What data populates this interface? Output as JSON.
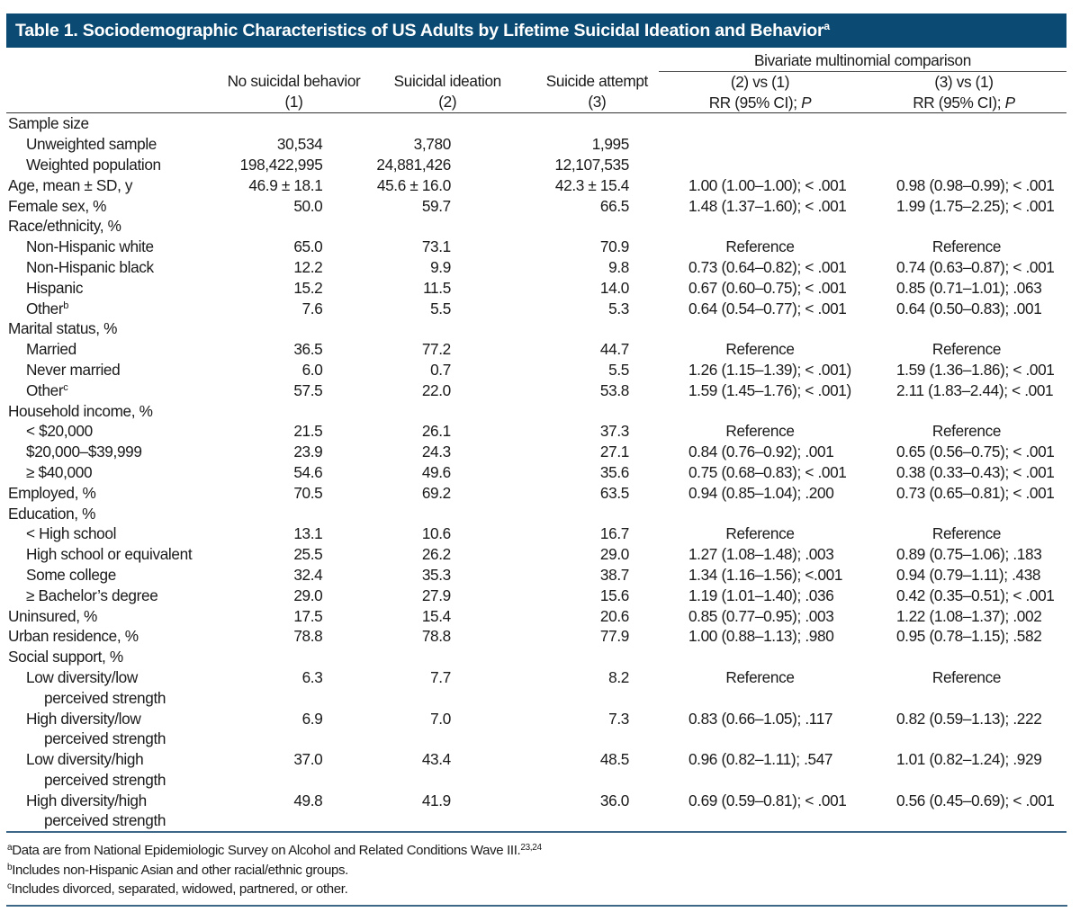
{
  "title": {
    "text": "Table 1. Sociodemographic Characteristics of US Adults by Lifetime Suicidal Ideation and Behavior",
    "footnote_marker": "a"
  },
  "colors": {
    "title_bar": "#0b4a72",
    "title_text": "#ffffff",
    "rule": "#3d6786"
  },
  "header": {
    "spanner": "Bivariate multinomial comparison",
    "columns": [
      {
        "line1": "No suicidal behavior",
        "line2": "(1)"
      },
      {
        "line1": "Suicidal ideation",
        "line2": "(2)"
      },
      {
        "line1": "Suicide attempt",
        "line2": "(3)"
      },
      {
        "line1": "(2) vs (1)",
        "line2_pre": "RR (95% CI); ",
        "line2_italic": "P"
      },
      {
        "line1": "(3) vs (1)",
        "line2_pre": "RR (95% CI); ",
        "line2_italic": "P"
      }
    ]
  },
  "rows": [
    {
      "label": "Sample size",
      "level": 0,
      "g1": "",
      "g2": "",
      "g3": "",
      "c1": "",
      "c2": ""
    },
    {
      "label": "Unweighted sample",
      "level": 1,
      "g1": "30,534",
      "g2": "3,780",
      "g3": "1,995",
      "c1": "",
      "c2": ""
    },
    {
      "label": "Weighted population",
      "level": 1,
      "g1": "198,422,995",
      "g2": "24,881,426",
      "g3": "12,107,535",
      "c1": "",
      "c2": ""
    },
    {
      "label": "Age, mean ± SD, y",
      "level": 0,
      "g1": "46.9 ± 18.1",
      "g2": "45.6 ± 16.0",
      "g3": "42.3 ± 15.4",
      "c1": "1.00 (1.00–1.00); < .001",
      "c2": "0.98 (0.98–0.99); < .001"
    },
    {
      "label": "Female sex, %",
      "level": 0,
      "g1": "50.0",
      "g2": "59.7",
      "g3": "66.5",
      "c1": "1.48 (1.37–1.60); < .001",
      "c2": "1.99 (1.75–2.25); < .001"
    },
    {
      "label": "Race/ethnicity, %",
      "level": 0,
      "g1": "",
      "g2": "",
      "g3": "",
      "c1": "",
      "c2": ""
    },
    {
      "label": "Non-Hispanic white",
      "level": 1,
      "g1": "65.0",
      "g2": "73.1",
      "g3": "70.9",
      "c1": "Reference",
      "c2": "Reference"
    },
    {
      "label": "Non-Hispanic black",
      "level": 1,
      "g1": "12.2",
      "g2": "9.9",
      "g3": "9.8",
      "c1": "0.73 (0.64–0.82); < .001",
      "c2": "0.74 (0.63–0.87); < .001"
    },
    {
      "label": "Hispanic",
      "level": 1,
      "g1": "15.2",
      "g2": "11.5",
      "g3": "14.0",
      "c1": "0.67 (0.60–0.75); < .001",
      "c2": "0.85 (0.71–1.01); .063"
    },
    {
      "label": "Other",
      "label_sup": "b",
      "level": 1,
      "g1": "7.6",
      "g2": "5.5",
      "g3": "5.3",
      "c1": "0.64 (0.54–0.77); < .001",
      "c2": "0.64 (0.50–0.83); .001"
    },
    {
      "label": "Marital status, %",
      "level": 0,
      "g1": "",
      "g2": "",
      "g3": "",
      "c1": "",
      "c2": ""
    },
    {
      "label": "Married",
      "level": 1,
      "g1": "36.5",
      "g2": "77.2",
      "g3": "44.7",
      "c1": "Reference",
      "c2": "Reference"
    },
    {
      "label": "Never married",
      "level": 1,
      "g1": "6.0",
      "g2": "0.7",
      "g3": "5.5",
      "c1": "1.26 (1.15–1.39); < .001)",
      "c2": "1.59 (1.36–1.86); < .001"
    },
    {
      "label": "Other",
      "label_sup": "c",
      "level": 1,
      "g1": "57.5",
      "g2": "22.0",
      "g3": "53.8",
      "c1": "1.59 (1.45–1.76); < .001)",
      "c2": "2.11 (1.83–2.44); < .001"
    },
    {
      "label": "Household income, %",
      "level": 0,
      "g1": "",
      "g2": "",
      "g3": "",
      "c1": "",
      "c2": ""
    },
    {
      "label": "< $20,000",
      "level": 1,
      "g1": "21.5",
      "g2": "26.1",
      "g3": "37.3",
      "c1": "Reference",
      "c2": "Reference"
    },
    {
      "label": "$20,000–$39,999",
      "level": 1,
      "g1": "23.9",
      "g2": "24.3",
      "g3": "27.1",
      "c1": "0.84 (0.76–0.92); .001",
      "c2": "0.65 (0.56–0.75); < .001"
    },
    {
      "label": "≥ $40,000",
      "level": 1,
      "g1": "54.6",
      "g2": "49.6",
      "g3": "35.6",
      "c1": "0.75 (0.68–0.83); < .001",
      "c2": "0.38 (0.33–0.43); < .001"
    },
    {
      "label": "Employed, %",
      "level": 0,
      "g1": "70.5",
      "g2": "69.2",
      "g3": "63.5",
      "c1": "0.94 (0.85–1.04); .200",
      "c2": "0.73 (0.65–0.81); < .001"
    },
    {
      "label": "Education, %",
      "level": 0,
      "g1": "",
      "g2": "",
      "g3": "",
      "c1": "",
      "c2": ""
    },
    {
      "label": "< High school",
      "level": 1,
      "g1": "13.1",
      "g2": "10.6",
      "g3": "16.7",
      "c1": "Reference",
      "c2": "Reference"
    },
    {
      "label": "High school or equivalent",
      "level": 1,
      "g1": "25.5",
      "g2": "26.2",
      "g3": "29.0",
      "c1": "1.27 (1.08–1.48); .003",
      "c2": "0.89 (0.75–1.06); .183"
    },
    {
      "label": "Some college",
      "level": 1,
      "g1": "32.4",
      "g2": "35.3",
      "g3": "38.7",
      "c1": "1.34 (1.16–1.56); <.001",
      "c2": "0.94 (0.79–1.11); .438"
    },
    {
      "label": "≥ Bachelor’s degree",
      "level": 1,
      "g1": "29.0",
      "g2": "27.9",
      "g3": "15.6",
      "c1": "1.19 (1.01–1.40); .036",
      "c2": "0.42 (0.35–0.51); < .001"
    },
    {
      "label": "Uninsured, %",
      "level": 0,
      "g1": "17.5",
      "g2": "15.4",
      "g3": "20.6",
      "c1": "0.85 (0.77–0.95); .003",
      "c2": "1.22 (1.08–1.37); .002"
    },
    {
      "label": "Urban residence, %",
      "level": 0,
      "g1": "78.8",
      "g2": "78.8",
      "g3": "77.9",
      "c1": "1.00 (0.88–1.13); .980",
      "c2": "0.95 (0.78–1.15); .582"
    },
    {
      "label": "Social support, %",
      "level": 0,
      "g1": "",
      "g2": "",
      "g3": "",
      "c1": "",
      "c2": ""
    },
    {
      "label": "Low diversity/low",
      "label_line2": "perceived strength",
      "level": 1,
      "g1": "6.3",
      "g2": "7.7",
      "g3": "8.2",
      "c1": "Reference",
      "c2": "Reference"
    },
    {
      "label": "High diversity/low",
      "label_line2": "perceived strength",
      "level": 1,
      "g1": "6.9",
      "g2": "7.0",
      "g3": "7.3",
      "c1": "0.83 (0.66–1.05); .117",
      "c2": "0.82 (0.59–1.13); .222"
    },
    {
      "label": "Low diversity/high",
      "label_line2": "perceived strength",
      "level": 1,
      "g1": "37.0",
      "g2": "43.4",
      "g3": "48.5",
      "c1": "0.96 (0.82–1.11); .547",
      "c2": "1.01 (0.82–1.24); .929"
    },
    {
      "label": "High diversity/high",
      "label_line2": "perceived strength",
      "level": 1,
      "g1": "49.8",
      "g2": "41.9",
      "g3": "36.0",
      "c1": "0.69 (0.59–0.81); < .001",
      "c2": "0.56 (0.45–0.69); < .001"
    }
  ],
  "footnotes": [
    {
      "marker": "a",
      "text": "Data are from National Epidemiologic Survey on Alcohol and Related Conditions Wave III.",
      "refs": "23,24"
    },
    {
      "marker": "b",
      "text": "Includes non-Hispanic Asian and other racial/ethnic groups.",
      "refs": ""
    },
    {
      "marker": "c",
      "text": "Includes divorced, separated, widowed, partnered, or other.",
      "refs": ""
    }
  ]
}
